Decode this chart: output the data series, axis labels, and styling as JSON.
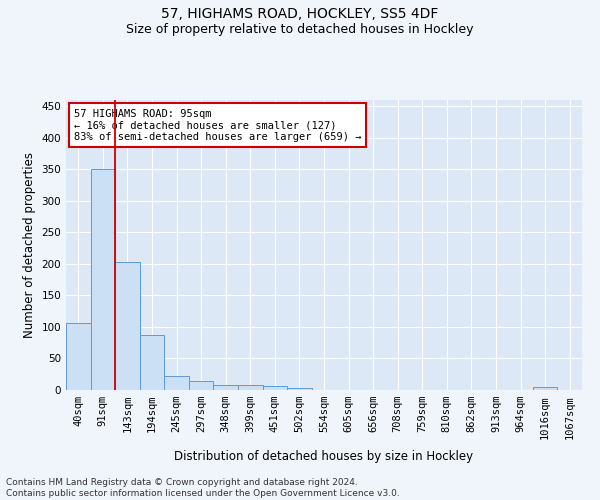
{
  "title_line1": "57, HIGHAMS ROAD, HOCKLEY, SS5 4DF",
  "title_line2": "Size of property relative to detached houses in Hockley",
  "xlabel": "Distribution of detached houses by size in Hockley",
  "ylabel": "Number of detached properties",
  "categories": [
    "40sqm",
    "91sqm",
    "143sqm",
    "194sqm",
    "245sqm",
    "297sqm",
    "348sqm",
    "399sqm",
    "451sqm",
    "502sqm",
    "554sqm",
    "605sqm",
    "656sqm",
    "708sqm",
    "759sqm",
    "810sqm",
    "862sqm",
    "913sqm",
    "964sqm",
    "1016sqm",
    "1067sqm"
  ],
  "values": [
    107,
    350,
    203,
    88,
    22,
    14,
    8,
    8,
    6,
    3,
    0,
    0,
    0,
    0,
    0,
    0,
    0,
    0,
    0,
    4,
    0
  ],
  "bar_color": "#cce0f5",
  "bar_edge_color": "#5b9bd5",
  "red_line_x": 1.5,
  "annotation_text": "57 HIGHAMS ROAD: 95sqm\n← 16% of detached houses are smaller (127)\n83% of semi-detached houses are larger (659) →",
  "annotation_box_color": "#ffffff",
  "annotation_box_edge": "#cc0000",
  "ylim": [
    0,
    460
  ],
  "yticks": [
    0,
    50,
    100,
    150,
    200,
    250,
    300,
    350,
    400,
    450
  ],
  "footer_line1": "Contains HM Land Registry data © Crown copyright and database right 2024.",
  "footer_line2": "Contains public sector information licensed under the Open Government Licence v3.0.",
  "bg_color": "#dce8f5",
  "grid_color": "#ffffff",
  "title_fontsize": 10,
  "subtitle_fontsize": 9,
  "axis_label_fontsize": 8.5,
  "tick_fontsize": 7.5,
  "annotation_fontsize": 7.5,
  "footer_fontsize": 6.5
}
